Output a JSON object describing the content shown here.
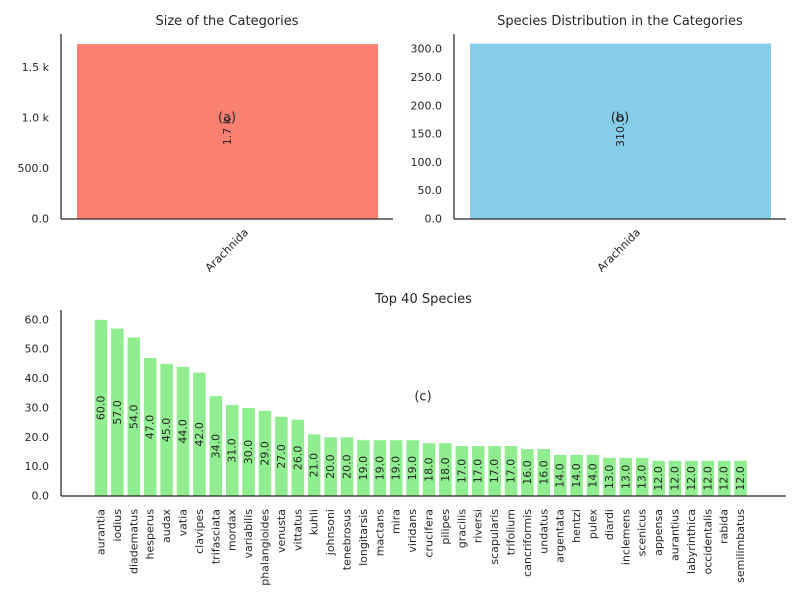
{
  "chart_data": [
    {
      "type": "bar",
      "title": "Size of the Categories",
      "panel_label": "(a)",
      "categories": [
        "Arachnida"
      ],
      "values": [
        1730
      ],
      "bar_labels": [
        "1.7 k"
      ],
      "color": "#fa8072",
      "ylim": [
        0,
        1820
      ],
      "yticks": [
        0,
        500,
        1000,
        1500
      ],
      "ytick_labels": [
        "0.0",
        "500.0",
        "1.0 k",
        "1.5 k"
      ],
      "grid": false
    },
    {
      "type": "bar",
      "title": "Species Distribution in the Categories",
      "panel_label": "(b)",
      "categories": [
        "Arachnida"
      ],
      "values": [
        310
      ],
      "bar_labels": [
        "310.0"
      ],
      "color": "#87ceeb",
      "ylim": [
        0,
        325
      ],
      "yticks": [
        0,
        50,
        100,
        150,
        200,
        250,
        300
      ],
      "ytick_labels": [
        "0.0",
        "50.0",
        "100.0",
        "150.0",
        "200.0",
        "250.0",
        "300.0"
      ],
      "grid": false
    },
    {
      "type": "bar",
      "title": "Top 40 Species",
      "panel_label": "(c)",
      "categories": [
        "aurantia",
        "iodius",
        "diadematus",
        "hesperus",
        "audax",
        "vatia",
        "clavipes",
        "trifasciata",
        "mordax",
        "variabilis",
        "phalangioides",
        "venusta",
        "vittatus",
        "kuhli",
        "johnsoni",
        "tenebrosus",
        "longitarsis",
        "mactans",
        "mira",
        "viridans",
        "crucifera",
        "pilipes",
        "gracilis",
        "riversi",
        "scapularis",
        "trifolium",
        "cancriformis",
        "undatus",
        "argentata",
        "hentzi",
        "pulex",
        "diardi",
        "inclemens",
        "scenicus",
        "appensa",
        "aurantius",
        "labyrinthica",
        "occidentalis",
        "rabida",
        "semilimbatus"
      ],
      "values": [
        60,
        57,
        54,
        47,
        45,
        44,
        42,
        34,
        31,
        30,
        29,
        27,
        26,
        21,
        20,
        20,
        19,
        19,
        19,
        19,
        18,
        18,
        17,
        17,
        17,
        17,
        16,
        16,
        14,
        14,
        14,
        13,
        13,
        13,
        12,
        12,
        12,
        12,
        12,
        12
      ],
      "color": "#90ee90",
      "ylim": [
        0,
        63
      ],
      "yticks": [
        0,
        10,
        20,
        30,
        40,
        50,
        60
      ],
      "ytick_labels": [
        "0.0",
        "10.0",
        "20.0",
        "30.0",
        "40.0",
        "50.0",
        "60.0"
      ],
      "grid": false
    }
  ]
}
